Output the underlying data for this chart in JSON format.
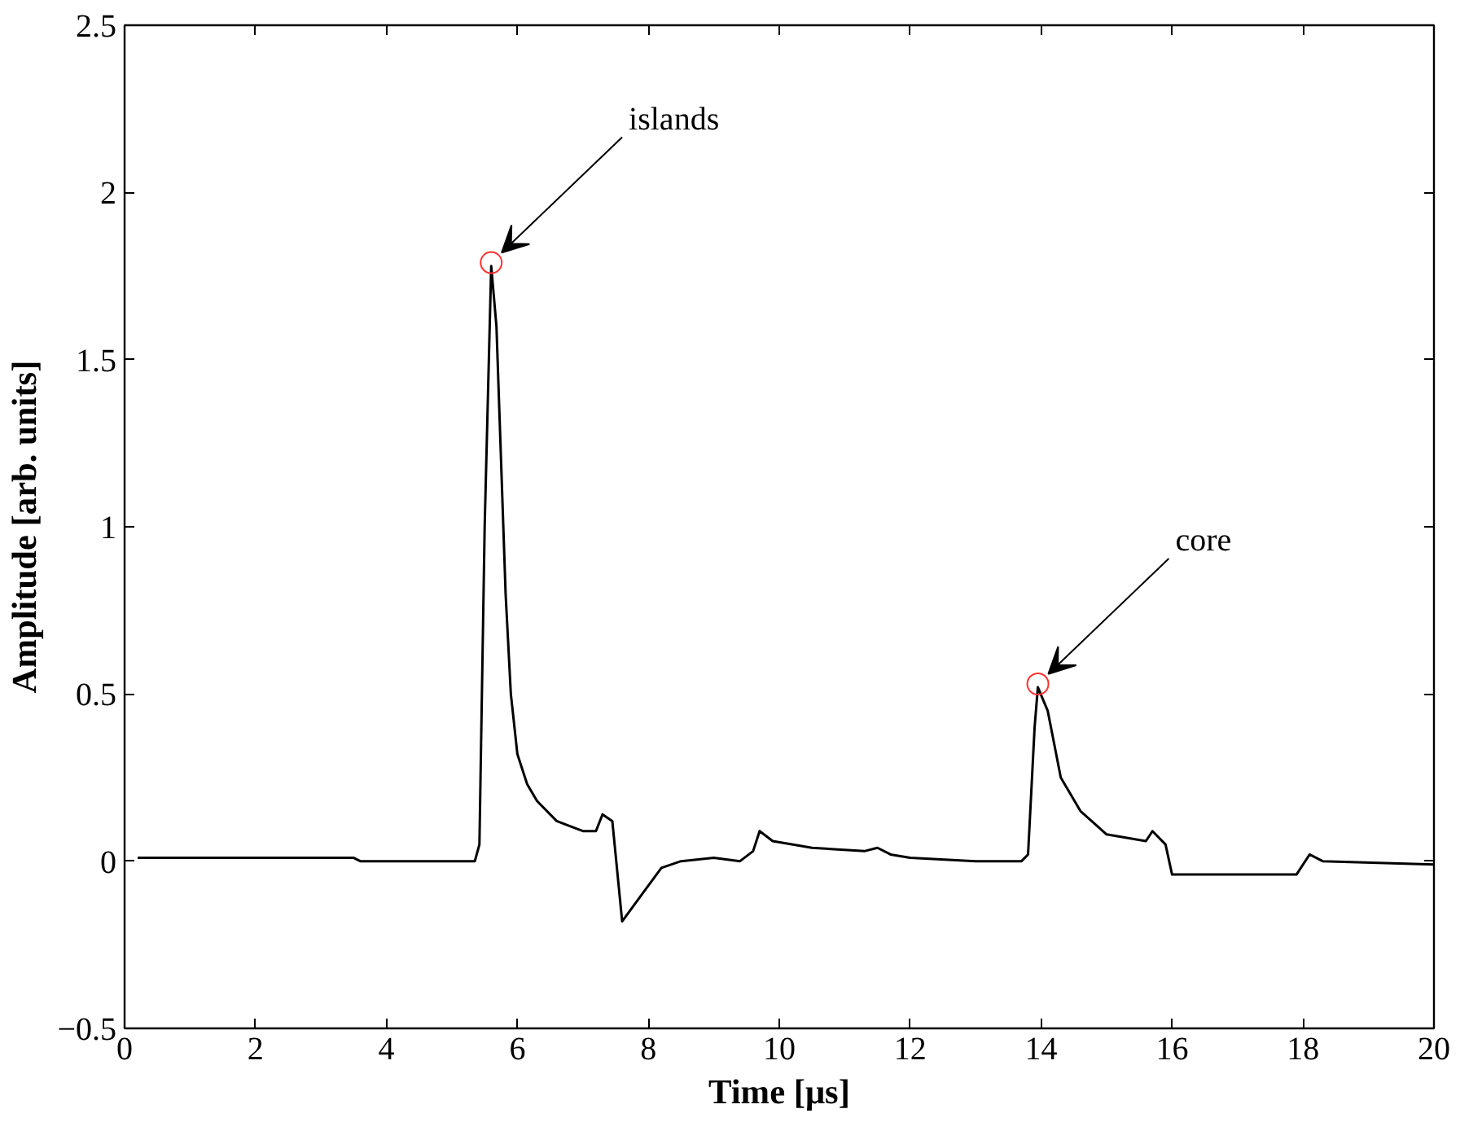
{
  "chart_data": {
    "type": "line",
    "xlabel": "Time [μs]",
    "ylabel": "Amplitude [arb. units]",
    "xlim": [
      0,
      20
    ],
    "ylim": [
      -0.5,
      2.5
    ],
    "xticks": [
      0,
      2,
      4,
      6,
      8,
      10,
      12,
      14,
      16,
      18,
      20
    ],
    "yticks": [
      {
        "value": -0.5,
        "label": "−0.5"
      },
      0,
      0.5,
      1,
      1.5,
      2,
      2.5
    ],
    "grid": false,
    "marker": "none",
    "line_style": "solid",
    "series": [
      {
        "color": "#000000",
        "x": [
          0.2,
          1.5,
          3.5,
          3.6,
          5.35,
          5.42,
          5.5,
          5.6,
          5.68,
          5.75,
          5.82,
          5.9,
          6.0,
          6.15,
          6.3,
          6.6,
          7.0,
          7.2,
          7.3,
          7.45,
          7.6,
          7.9,
          8.2,
          8.5,
          9.0,
          9.4,
          9.6,
          9.7,
          9.9,
          10.5,
          11.3,
          11.5,
          11.7,
          12.0,
          13.0,
          13.7,
          13.8,
          13.9,
          13.95,
          14.1,
          14.3,
          14.6,
          15.0,
          15.6,
          15.7,
          15.9,
          16.0,
          17.9,
          18.1,
          18.3,
          20
        ],
        "values": [
          0.01,
          0.01,
          0.01,
          0.0,
          0.0,
          0.05,
          1.0,
          1.78,
          1.6,
          1.2,
          0.8,
          0.5,
          0.32,
          0.23,
          0.18,
          0.12,
          0.09,
          0.09,
          0.14,
          0.12,
          -0.18,
          -0.1,
          -0.02,
          0.0,
          0.01,
          0.0,
          0.03,
          0.09,
          0.06,
          0.04,
          0.03,
          0.04,
          0.02,
          0.01,
          0.0,
          0.0,
          0.02,
          0.4,
          0.52,
          0.45,
          0.25,
          0.15,
          0.08,
          0.06,
          0.09,
          0.05,
          -0.04,
          -0.04,
          0.02,
          0.0,
          -0.01
        ]
      }
    ],
    "annotations": [
      {
        "text": "islands",
        "x": 5.6,
        "y": 1.79
      },
      {
        "text": "core",
        "x": 13.95,
        "y": 0.53
      }
    ]
  }
}
